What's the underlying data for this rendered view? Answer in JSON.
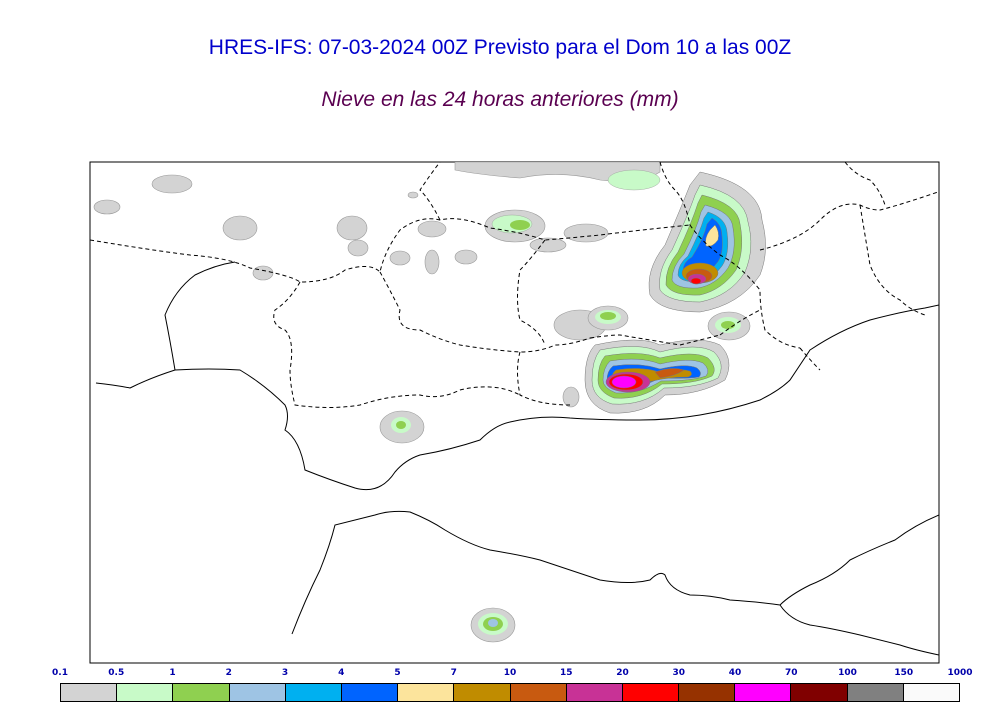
{
  "header": {
    "title": "HRES-IFS: 07-03-2024 00Z Previsto para el Dom 10 a las 00Z",
    "subtitle": "Nieve en las 24 horas anteriores (mm)"
  },
  "legend": {
    "ticks": [
      "0.1",
      "0.5",
      "1",
      "2",
      "3",
      "4",
      "5",
      "7",
      "10",
      "15",
      "20",
      "30",
      "40",
      "70",
      "100",
      "150",
      "1000"
    ],
    "colors": [
      "#d3d3d3",
      "#c8fac8",
      "#8fd050",
      "#9ec4e4",
      "#00b0f0",
      "#0064ff",
      "#fce49c",
      "#c08c00",
      "#c85a10",
      "#c83296",
      "#ff0000",
      "#963200",
      "#ff00ff",
      "#800000",
      "#808080",
      "#fafafa"
    ]
  },
  "map": {
    "region": "Andalucía / Sur de España y Norte de Marruecos",
    "field": "nieve-24h-mm"
  }
}
